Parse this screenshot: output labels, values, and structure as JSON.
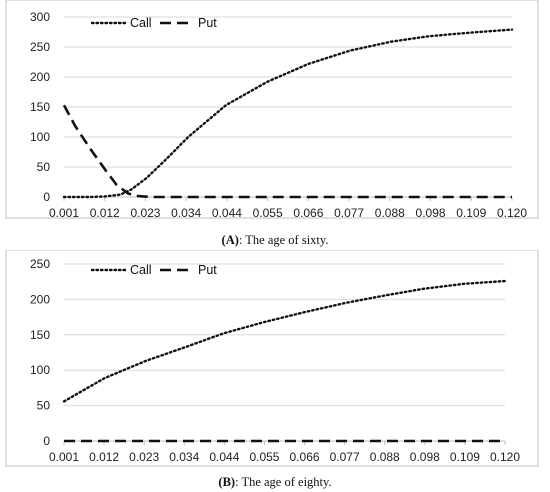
{
  "chart_data": [
    {
      "type": "line",
      "caption_label": "(A)",
      "caption_text": ": The age of sixty.",
      "ylim": [
        0,
        300
      ],
      "yticks": [
        0,
        50,
        100,
        150,
        200,
        250,
        300
      ],
      "xlim": [
        0.001,
        0.12
      ],
      "xticks": [
        "0.001",
        "0.012",
        "0.023",
        "0.034",
        "0.044",
        "0.055",
        "0.066",
        "0.077",
        "0.088",
        "0.098",
        "0.109",
        "0.120"
      ],
      "grid": true,
      "legend_position": "top-left",
      "series": [
        {
          "name": "Call",
          "style": "dotted",
          "x": [
            0.001,
            0.008,
            0.012,
            0.016,
            0.019,
            0.023,
            0.028,
            0.034,
            0.044,
            0.055,
            0.066,
            0.077,
            0.088,
            0.098,
            0.109,
            0.12
          ],
          "y": [
            0,
            0,
            1,
            4,
            13,
            32,
            62,
            100,
            153,
            192,
            222,
            244,
            259,
            268,
            274,
            279
          ]
        },
        {
          "name": "Put",
          "style": "dashed",
          "x": [
            0.001,
            0.004,
            0.008,
            0.012,
            0.015,
            0.018,
            0.02,
            0.022,
            0.025,
            0.03,
            0.12
          ],
          "y": [
            153,
            118,
            80,
            45,
            20,
            6,
            2,
            1,
            0,
            0,
            0
          ]
        }
      ]
    },
    {
      "type": "line",
      "caption_label": "(B)",
      "caption_text": ": The age of eighty.",
      "ylim": [
        0,
        250
      ],
      "yticks": [
        0,
        50,
        100,
        150,
        200,
        250
      ],
      "xlim": [
        0.001,
        0.12
      ],
      "xticks": [
        "0.001",
        "0.012",
        "0.023",
        "0.034",
        "0.044",
        "0.055",
        "0.066",
        "0.077",
        "0.088",
        "0.098",
        "0.109",
        "0.120"
      ],
      "grid": true,
      "legend_position": "top-left",
      "series": [
        {
          "name": "Call",
          "style": "dotted",
          "x": [
            0.001,
            0.012,
            0.023,
            0.034,
            0.044,
            0.055,
            0.066,
            0.077,
            0.088,
            0.098,
            0.109,
            0.12
          ],
          "y": [
            56,
            89,
            113,
            133,
            152,
            168,
            182,
            195,
            206,
            215,
            222,
            226
          ]
        },
        {
          "name": "Put",
          "style": "dashed",
          "x": [
            0.001,
            0.12
          ],
          "y": [
            0,
            0
          ]
        }
      ]
    }
  ]
}
